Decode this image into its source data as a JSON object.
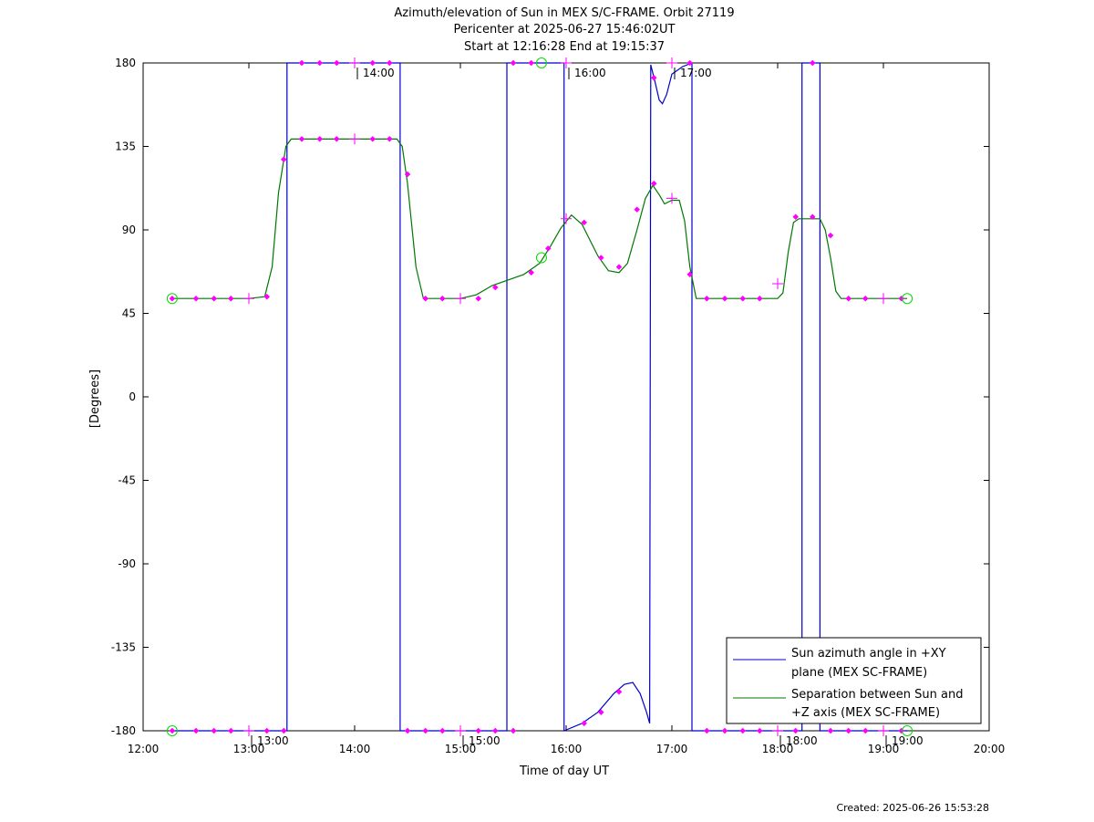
{
  "chart_data": {
    "type": "line",
    "title_lines": [
      "Azimuth/elevation of Sun in MEX S/C-FRAME.  Orbit 27119",
      "Pericenter at 2025-06-27 15:46:02UT",
      "Start at 12:16:28 End at 19:15:37"
    ],
    "xlabel": "Time of day UT",
    "ylabel": "[Degrees]",
    "xlim": [
      12.0,
      20.0
    ],
    "ylim": [
      -180,
      180
    ],
    "x_ticks": [
      {
        "v": 12,
        "label": "12:00"
      },
      {
        "v": 13,
        "label": "13:00"
      },
      {
        "v": 14,
        "label": "14:00"
      },
      {
        "v": 15,
        "label": "15:00"
      },
      {
        "v": 16,
        "label": "16:00"
      },
      {
        "v": 17,
        "label": "17:00"
      },
      {
        "v": 18,
        "label": "18:00"
      },
      {
        "v": 19,
        "label": "19:00"
      },
      {
        "v": 20,
        "label": "20:00"
      }
    ],
    "y_ticks": [
      {
        "v": 180,
        "label": "180"
      },
      {
        "v": 135,
        "label": "135"
      },
      {
        "v": 90,
        "label": "90"
      },
      {
        "v": 45,
        "label": "45"
      },
      {
        "v": 0,
        "label": "0"
      },
      {
        "v": -45,
        "label": "-45"
      },
      {
        "v": -90,
        "label": "-90"
      },
      {
        "v": -135,
        "label": "-135"
      },
      {
        "v": -180,
        "label": "-180"
      }
    ],
    "grid": false,
    "legend_position": "bottom-right",
    "series": [
      {
        "name": "Sun azimuth angle in +XY plane (MEX SC-FRAME)",
        "legend_lines": [
          "Sun azimuth angle in +XY",
          "plane (MEX SC-FRAME)"
        ],
        "color": "#0000cc",
        "points": [
          [
            12.275,
            -180
          ],
          [
            13.0,
            -180
          ],
          [
            13.36,
            -180
          ],
          [
            13.36,
            180
          ],
          [
            14.0,
            180
          ],
          [
            14.43,
            180
          ],
          [
            14.43,
            -180
          ],
          [
            15.0,
            -180
          ],
          [
            15.44,
            -180
          ],
          [
            15.44,
            180
          ],
          [
            15.98,
            180
          ],
          [
            15.98,
            -180
          ],
          [
            16.15,
            -176
          ],
          [
            16.3,
            -170
          ],
          [
            16.45,
            -160
          ],
          [
            16.55,
            -155
          ],
          [
            16.63,
            -154
          ],
          [
            16.7,
            -160
          ],
          [
            16.76,
            -170
          ],
          [
            16.79,
            -176
          ],
          [
            16.8,
            179
          ],
          [
            16.84,
            170
          ],
          [
            16.88,
            160
          ],
          [
            16.91,
            158
          ],
          [
            16.95,
            163
          ],
          [
            17.0,
            174
          ],
          [
            17.1,
            178
          ],
          [
            17.19,
            180
          ],
          [
            17.19,
            -180
          ],
          [
            18.0,
            -180
          ],
          [
            18.23,
            -180
          ],
          [
            18.23,
            180
          ],
          [
            18.4,
            180
          ],
          [
            18.4,
            -180
          ],
          [
            19.0,
            -180
          ],
          [
            19.225,
            -180
          ]
        ]
      },
      {
        "name": "Separation between Sun and +Z axis (MEX SC-FRAME)",
        "legend_lines": [
          "Separation between Sun and",
          "+Z axis (MEX SC-FRAME)"
        ],
        "color": "#007700",
        "points": [
          [
            12.275,
            53
          ],
          [
            13.0,
            53
          ],
          [
            13.15,
            54
          ],
          [
            13.22,
            70
          ],
          [
            13.28,
            110
          ],
          [
            13.35,
            135
          ],
          [
            13.4,
            139
          ],
          [
            14.0,
            139
          ],
          [
            14.4,
            139
          ],
          [
            14.45,
            135
          ],
          [
            14.5,
            115
          ],
          [
            14.58,
            70
          ],
          [
            14.65,
            53
          ],
          [
            15.0,
            53
          ],
          [
            15.15,
            55
          ],
          [
            15.3,
            60
          ],
          [
            15.45,
            63
          ],
          [
            15.6,
            66
          ],
          [
            15.75,
            72
          ],
          [
            15.85,
            81
          ],
          [
            15.95,
            91
          ],
          [
            16.05,
            98
          ],
          [
            16.15,
            93
          ],
          [
            16.3,
            76
          ],
          [
            16.4,
            68
          ],
          [
            16.5,
            67
          ],
          [
            16.58,
            72
          ],
          [
            16.67,
            90
          ],
          [
            16.75,
            107
          ],
          [
            16.82,
            114
          ],
          [
            16.88,
            109
          ],
          [
            16.93,
            104
          ],
          [
            17.0,
            106
          ],
          [
            17.07,
            106
          ],
          [
            17.12,
            95
          ],
          [
            17.17,
            70
          ],
          [
            17.23,
            53
          ],
          [
            18.0,
            53
          ],
          [
            18.05,
            56
          ],
          [
            18.1,
            78
          ],
          [
            18.15,
            94
          ],
          [
            18.2,
            96
          ],
          [
            18.4,
            96
          ],
          [
            18.45,
            90
          ],
          [
            18.5,
            75
          ],
          [
            18.55,
            57
          ],
          [
            18.6,
            53
          ],
          [
            19.0,
            53
          ],
          [
            19.225,
            53
          ]
        ]
      }
    ],
    "markers": {
      "dots": [
        [
          12.275,
          -180
        ],
        [
          12.5,
          -180
        ],
        [
          12.67,
          -180
        ],
        [
          12.83,
          -180
        ],
        [
          13.17,
          -180
        ],
        [
          13.33,
          -180
        ],
        [
          14.5,
          -180
        ],
        [
          14.67,
          -180
        ],
        [
          14.83,
          -180
        ],
        [
          15.17,
          -180
        ],
        [
          15.33,
          -180
        ],
        [
          15.5,
          -180
        ],
        [
          17.33,
          -180
        ],
        [
          17.5,
          -180
        ],
        [
          17.67,
          -180
        ],
        [
          17.83,
          -180
        ],
        [
          18.17,
          -180
        ],
        [
          18.5,
          -180
        ],
        [
          18.67,
          -180
        ],
        [
          18.83,
          -180
        ],
        [
          19.17,
          -180
        ],
        [
          13.5,
          180
        ],
        [
          13.67,
          180
        ],
        [
          13.83,
          180
        ],
        [
          14.17,
          180
        ],
        [
          14.33,
          180
        ],
        [
          15.5,
          180
        ],
        [
          15.67,
          180
        ],
        [
          18.33,
          180
        ],
        [
          16.17,
          -176
        ],
        [
          16.33,
          -170
        ],
        [
          16.5,
          -159
        ],
        [
          16.83,
          172
        ],
        [
          17.17,
          180
        ],
        [
          12.275,
          53
        ],
        [
          12.5,
          53
        ],
        [
          12.67,
          53
        ],
        [
          12.83,
          53
        ],
        [
          13.17,
          54
        ],
        [
          13.33,
          128
        ],
        [
          13.5,
          139
        ],
        [
          13.67,
          139
        ],
        [
          13.83,
          139
        ],
        [
          14.17,
          139
        ],
        [
          14.33,
          139
        ],
        [
          14.5,
          120
        ],
        [
          14.67,
          53
        ],
        [
          14.83,
          53
        ],
        [
          15.17,
          53
        ],
        [
          15.33,
          59
        ],
        [
          15.67,
          67
        ],
        [
          15.83,
          80
        ],
        [
          16.17,
          94
        ],
        [
          16.33,
          75
        ],
        [
          16.5,
          70
        ],
        [
          16.67,
          101
        ],
        [
          16.83,
          115
        ],
        [
          17.17,
          66
        ],
        [
          17.33,
          53
        ],
        [
          17.5,
          53
        ],
        [
          17.67,
          53
        ],
        [
          17.83,
          53
        ],
        [
          18.17,
          97
        ],
        [
          18.33,
          97
        ],
        [
          18.5,
          87
        ],
        [
          18.67,
          53
        ],
        [
          18.83,
          53
        ],
        [
          19.17,
          53
        ]
      ],
      "hour_crosses": [
        [
          13.0,
          -180
        ],
        [
          14.0,
          180
        ],
        [
          15.0,
          -180
        ],
        [
          16.0,
          180
        ],
        [
          17.0,
          180
        ],
        [
          18.0,
          -180
        ],
        [
          19.0,
          -180
        ],
        [
          13.0,
          53
        ],
        [
          14.0,
          139
        ],
        [
          15.0,
          53
        ],
        [
          16.0,
          96
        ],
        [
          17.0,
          107
        ],
        [
          18.0,
          61
        ],
        [
          19.0,
          53
        ]
      ],
      "circles": [
        [
          12.275,
          -180
        ],
        [
          15.767,
          180
        ],
        [
          19.225,
          -180
        ],
        [
          12.275,
          53
        ],
        [
          15.767,
          75
        ],
        [
          19.225,
          53
        ]
      ]
    },
    "time_annotations": [
      {
        "x": 13.0,
        "y": -180,
        "label": "13:00"
      },
      {
        "x": 14.0,
        "y": 180,
        "label": "14:00"
      },
      {
        "x": 15.0,
        "y": -180,
        "label": "15:00"
      },
      {
        "x": 16.0,
        "y": 180,
        "label": "16:00"
      },
      {
        "x": 17.0,
        "y": 180,
        "label": "17:00"
      },
      {
        "x": 18.0,
        "y": -180,
        "label": "18:00"
      },
      {
        "x": 19.0,
        "y": -180,
        "label": "19:00"
      }
    ],
    "footer": "Created: 2025-06-26 15:53:28"
  },
  "colors": {
    "axis": "#000000",
    "marker": "#ff00ff",
    "circle": "#00dd00"
  }
}
